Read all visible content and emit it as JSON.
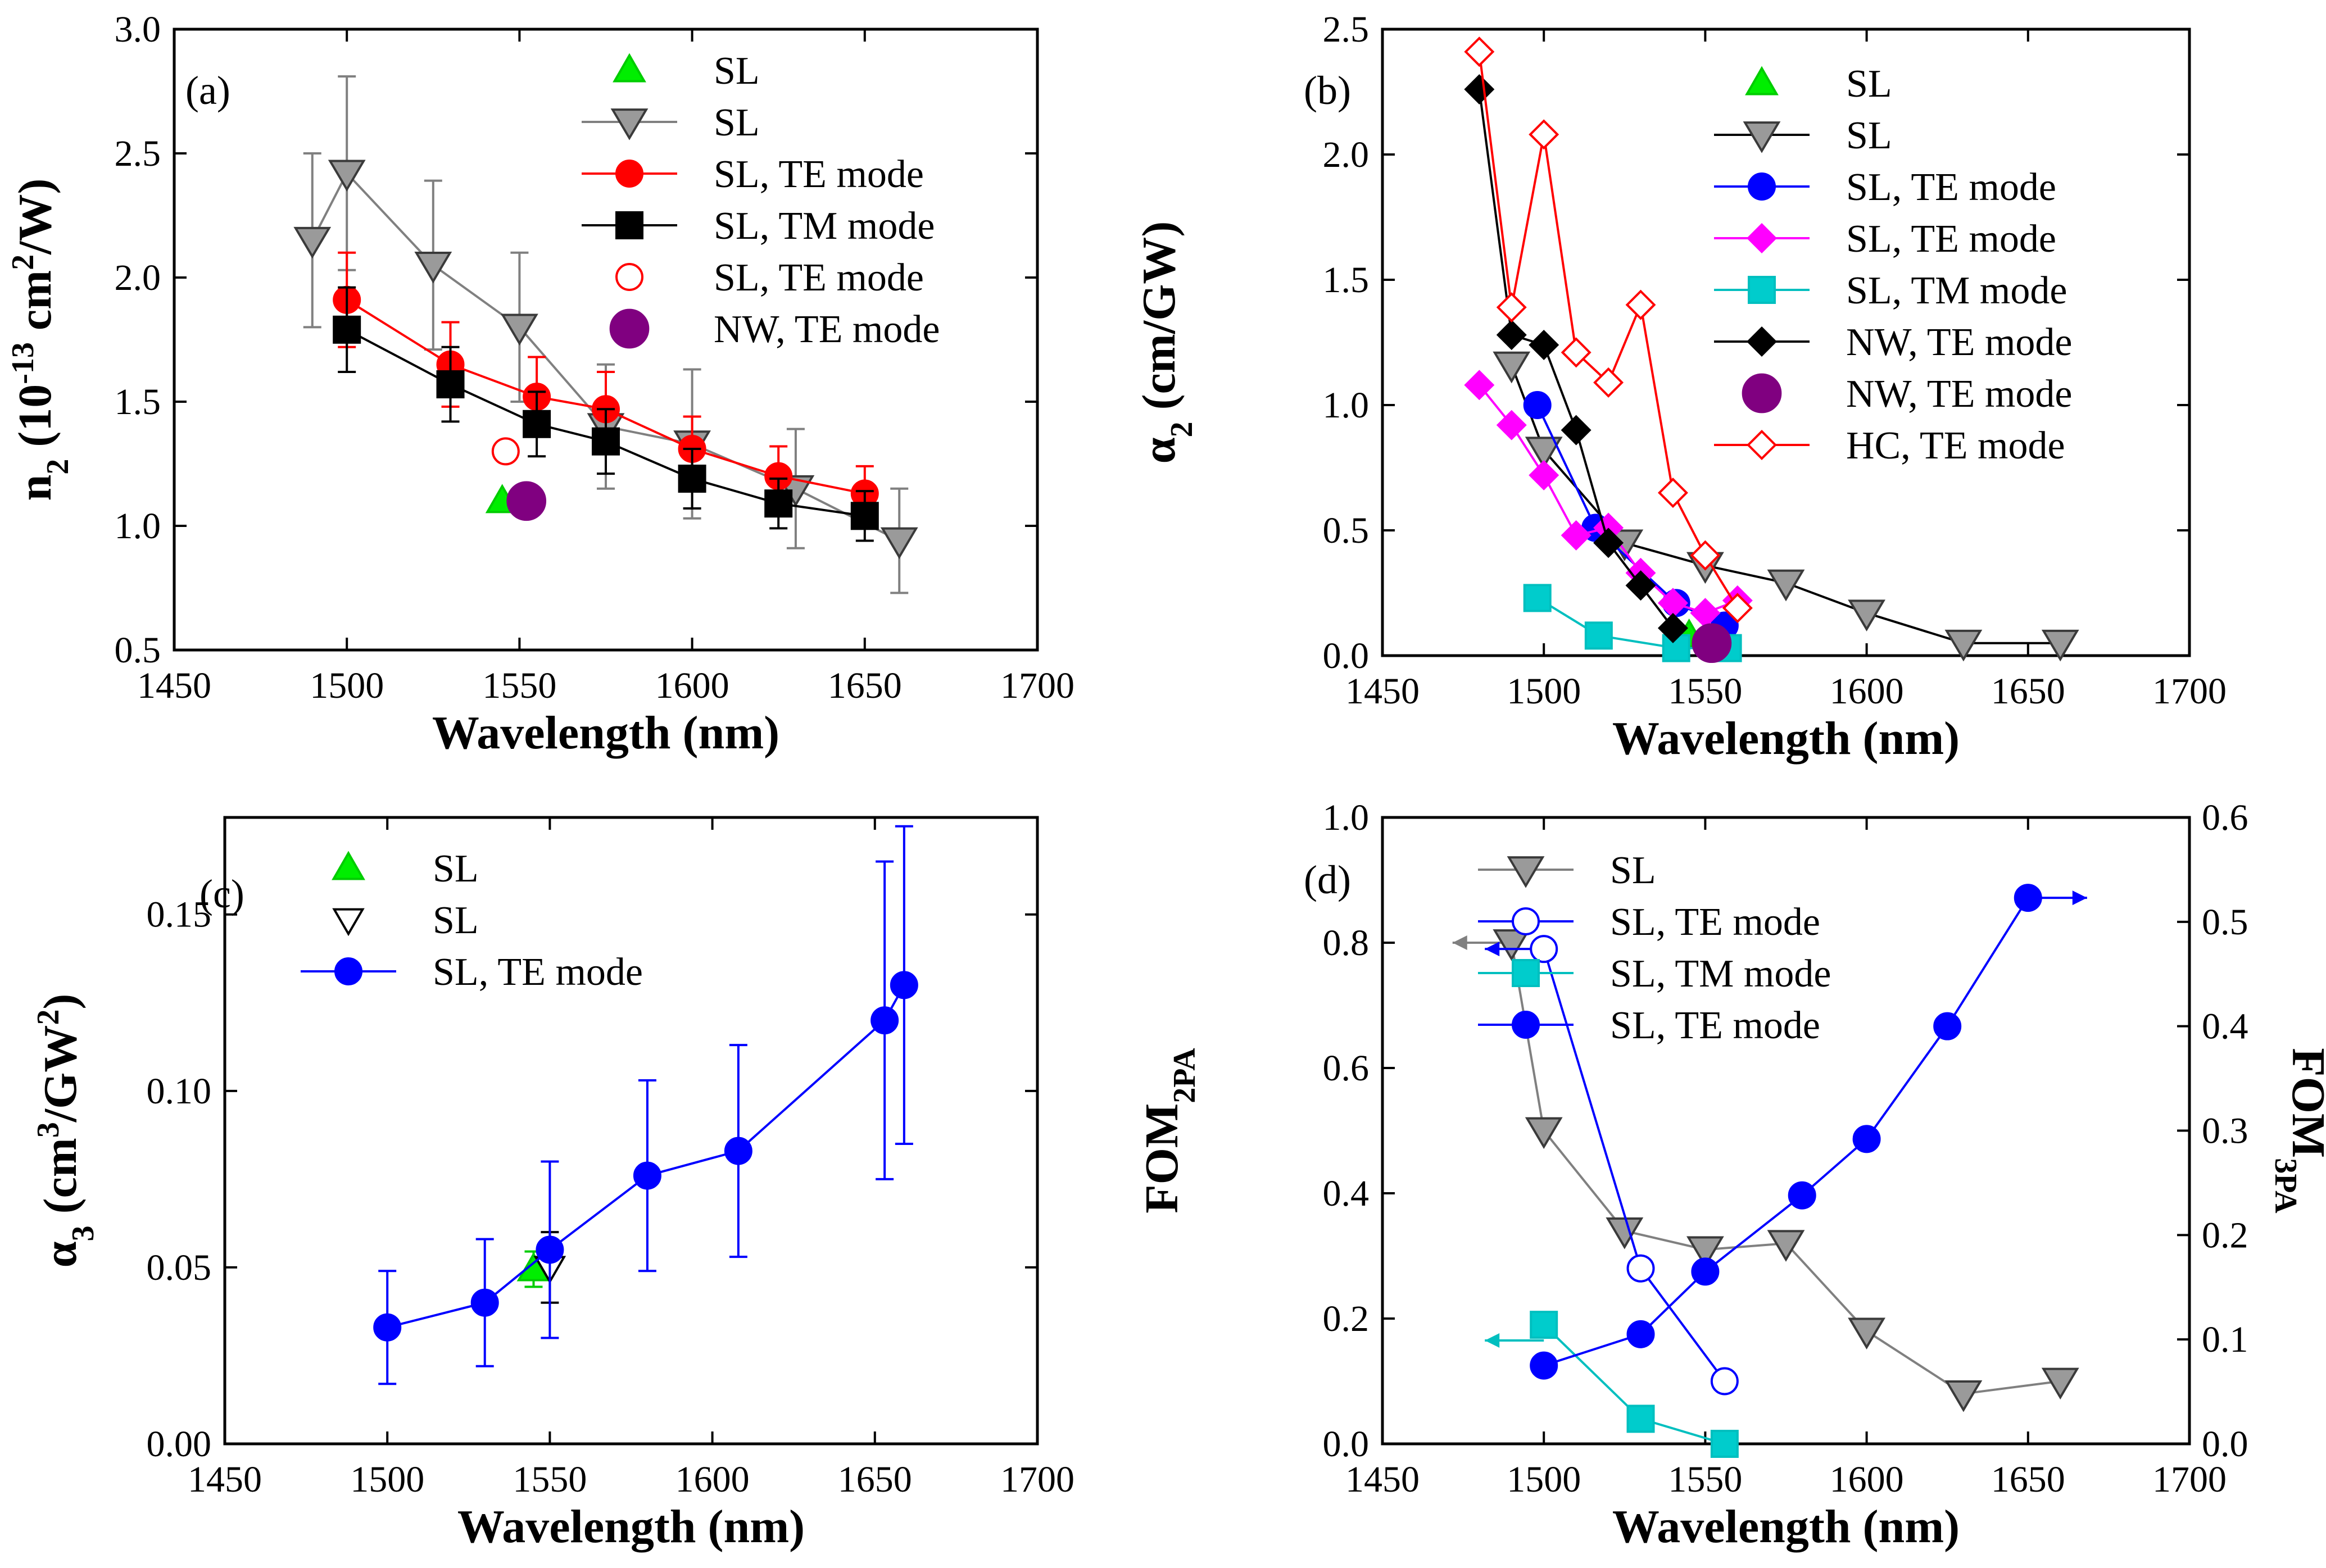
{
  "figure_title": "Nonlinear optical coefficients vs wavelength",
  "chart_data": [
    {
      "panel": "a",
      "type": "line",
      "panel_label": "(a)",
      "xlabel": "Wavelength (nm)",
      "ylabel_main": "n",
      "ylabel_sub": "2",
      "ylabel_rest": " (10",
      "ylabel_sup1": "-13",
      "ylabel_rest2": " cm",
      "ylabel_sup2": "2",
      "ylabel_rest3": "/W)",
      "xlim": [
        1450,
        1700
      ],
      "ylim": [
        0.5,
        3.0
      ],
      "xticks": [
        1450,
        1500,
        1550,
        1600,
        1650,
        1700
      ],
      "xtick_labels": [
        "1450",
        "1500",
        "1550",
        "1600",
        "1650",
        "1700"
      ],
      "yticks": [
        0.5,
        1.0,
        1.5,
        2.0,
        2.5,
        3.0
      ],
      "ytick_labels": [
        "0.5",
        "1.0",
        "1.5",
        "2.0",
        "2.5",
        "3.0"
      ],
      "series": [
        {
          "name": "SL",
          "marker": "triangle-up",
          "color": "#00cc00",
          "fill": "#00ee00",
          "line": false,
          "x": [
            1545
          ],
          "y": [
            1.1
          ]
        },
        {
          "name": "SL",
          "marker": "triangle-down",
          "color": "#808080",
          "fill": "#9a9a9a",
          "line": true,
          "x": [
            1490,
            1500,
            1525,
            1550,
            1575,
            1600,
            1630,
            1660
          ],
          "y": [
            2.15,
            2.42,
            2.05,
            1.8,
            1.4,
            1.33,
            1.15,
            0.94
          ],
          "err": [
            0.35,
            0.39,
            0.34,
            0.3,
            0.25,
            0.3,
            0.24,
            0.21
          ]
        },
        {
          "name": "SL, TE mode",
          "marker": "circle",
          "color": "#ff0000",
          "fill": "#ff0000",
          "line": true,
          "x": [
            1500,
            1530,
            1555,
            1575,
            1600,
            1625,
            1650
          ],
          "y": [
            1.91,
            1.65,
            1.52,
            1.47,
            1.31,
            1.2,
            1.13
          ],
          "err": [
            0.19,
            0.17,
            0.16,
            0.15,
            0.13,
            0.12,
            0.11
          ]
        },
        {
          "name": "SL, TM mode",
          "marker": "square",
          "color": "#000000",
          "fill": "#000000",
          "line": true,
          "x": [
            1500,
            1530,
            1555,
            1575,
            1600,
            1625,
            1650
          ],
          "y": [
            1.79,
            1.57,
            1.41,
            1.34,
            1.19,
            1.09,
            1.04
          ],
          "err": [
            0.17,
            0.15,
            0.13,
            0.13,
            0.12,
            0.1,
            0.1
          ]
        },
        {
          "name": "SL, TE mode",
          "marker": "circle-open",
          "color": "#ff0000",
          "fill": "none",
          "line": false,
          "x": [
            1546
          ],
          "y": [
            1.3
          ]
        },
        {
          "name": "NW, TE mode",
          "marker": "circle-big",
          "color": "#800080",
          "fill": "#800080",
          "line": false,
          "x": [
            1552
          ],
          "y": [
            1.1
          ]
        }
      ]
    },
    {
      "panel": "b",
      "type": "line",
      "panel_label": "(b)",
      "xlabel": "Wavelength (nm)",
      "ylabel_main": "α",
      "ylabel_sub": "2",
      "ylabel_rest": " (cm/GW)",
      "xlim": [
        1450,
        1700
      ],
      "ylim": [
        0,
        2.5
      ],
      "xticks": [
        1450,
        1500,
        1550,
        1600,
        1650,
        1700
      ],
      "xtick_labels": [
        "1450",
        "1500",
        "1550",
        "1600",
        "1650",
        "1700"
      ],
      "yticks": [
        0,
        0.5,
        1.0,
        1.5,
        2.0,
        2.5
      ],
      "ytick_labels": [
        "0.0",
        "0.5",
        "1.0",
        "1.5",
        "2.0",
        "2.5"
      ],
      "series": [
        {
          "name": "SL",
          "marker": "triangle-up",
          "color": "#00cc00",
          "fill": "#00ee00",
          "line": false,
          "x": [
            1545
          ],
          "y": [
            0.08
          ]
        },
        {
          "name": "SL",
          "marker": "triangle-down",
          "color": "#000000",
          "fill": "#9a9a9a",
          "line": true,
          "x": [
            1490,
            1500,
            1525,
            1550,
            1575,
            1600,
            1630,
            1660
          ],
          "y": [
            1.16,
            0.82,
            0.45,
            0.36,
            0.29,
            0.17,
            0.05,
            0.05
          ]
        },
        {
          "name": "SL, TE mode",
          "marker": "circle",
          "color": "#0000ff",
          "fill": "#0000ff",
          "line": true,
          "x": [
            1498,
            1516,
            1541,
            1556
          ],
          "y": [
            1.0,
            0.51,
            0.21,
            0.12
          ]
        },
        {
          "name": "SL, TE mode",
          "marker": "diamond",
          "color": "#ff00ff",
          "fill": "#ff00ff",
          "line": true,
          "x": [
            1480,
            1490,
            1500,
            1510,
            1520,
            1530,
            1540,
            1550,
            1560
          ],
          "y": [
            1.08,
            0.92,
            0.72,
            0.48,
            0.51,
            0.33,
            0.21,
            0.17,
            0.22
          ]
        },
        {
          "name": "SL, TM mode",
          "marker": "square",
          "color": "#00bfbf",
          "fill": "#00cccc",
          "line": true,
          "x": [
            1498,
            1517,
            1541,
            1557
          ],
          "y": [
            0.23,
            0.08,
            0.03,
            0.03
          ]
        },
        {
          "name": "NW, TE mode",
          "marker": "diamond",
          "color": "#000000",
          "fill": "#000000",
          "line": true,
          "x": [
            1480,
            1490,
            1500,
            1510,
            1520,
            1530,
            1540
          ],
          "y": [
            2.26,
            1.28,
            1.24,
            0.9,
            0.45,
            0.28,
            0.11
          ]
        },
        {
          "name": "NW, TE mode",
          "marker": "circle-big",
          "color": "#800080",
          "fill": "#800080",
          "line": false,
          "x": [
            1552
          ],
          "y": [
            0.05
          ]
        },
        {
          "name": "HC, TE mode",
          "marker": "diamond-open",
          "color": "#ff0000",
          "fill": "#ffffff",
          "line": true,
          "x": [
            1480,
            1490,
            1500,
            1510,
            1520,
            1530,
            1540,
            1550,
            1560
          ],
          "y": [
            2.41,
            1.39,
            2.08,
            1.21,
            1.09,
            1.4,
            0.65,
            0.4,
            0.19
          ]
        }
      ]
    },
    {
      "panel": "c",
      "type": "line",
      "panel_label": "(c)",
      "xlabel": "Wavelength (nm)",
      "ylabel_main": "α",
      "ylabel_sub": "3",
      "ylabel_rest": " (cm",
      "ylabel_sup1": "3",
      "ylabel_rest2": "/GW",
      "ylabel_sup2": "2",
      "ylabel_rest3": ")",
      "xlim": [
        1450,
        1700
      ],
      "ylim": [
        0,
        0.1775
      ],
      "xticks": [
        1450,
        1500,
        1550,
        1600,
        1650,
        1700
      ],
      "xtick_labels": [
        "1450",
        "1500",
        "1550",
        "1600",
        "1650",
        "1700"
      ],
      "yticks": [
        0,
        0.05,
        0.1,
        0.15
      ],
      "ytick_labels": [
        "0.00",
        "0.05",
        "0.10",
        "0.15"
      ],
      "series": [
        {
          "name": "SL",
          "marker": "triangle-up",
          "color": "#00cc00",
          "fill": "#00ee00",
          "line": false,
          "x": [
            1545
          ],
          "y": [
            0.0495
          ],
          "err": [
            0.005
          ]
        },
        {
          "name": "SL",
          "marker": "triangle-down-open",
          "color": "#000000",
          "fill": "#ffffff",
          "line": false,
          "x": [
            1550
          ],
          "y": [
            0.05
          ],
          "err": [
            0.01
          ]
        },
        {
          "name": "SL, TE mode",
          "marker": "circle",
          "color": "#0000ff",
          "fill": "#0000ff",
          "line": true,
          "x": [
            1500,
            1530,
            1550,
            1580,
            1608,
            1653,
            1659
          ],
          "y": [
            0.033,
            0.04,
            0.055,
            0.076,
            0.083,
            0.12,
            0.13
          ],
          "err": [
            0.016,
            0.018,
            0.025,
            0.027,
            0.03,
            0.045,
            0.045
          ]
        }
      ]
    },
    {
      "panel": "d",
      "type": "line",
      "panel_label": "(d)",
      "xlabel": "Wavelength (nm)",
      "ylabel_main": "FOM",
      "ylabel_sub": "2PA",
      "y2label_main": "FOM",
      "y2label_sub": "3PA",
      "xlim": [
        1450,
        1700
      ],
      "ylim": [
        0,
        1.0
      ],
      "y2lim": [
        0,
        0.6
      ],
      "xticks": [
        1450,
        1500,
        1550,
        1600,
        1650,
        1700
      ],
      "xtick_labels": [
        "1450",
        "1500",
        "1550",
        "1600",
        "1650",
        "1700"
      ],
      "yticks": [
        0,
        0.2,
        0.4,
        0.6,
        0.8,
        1.0
      ],
      "ytick_labels": [
        "0.0",
        "0.2",
        "0.4",
        "0.6",
        "0.8",
        "1.0"
      ],
      "y2ticks": [
        0,
        0.1,
        0.2,
        0.3,
        0.4,
        0.5,
        0.6
      ],
      "y2tick_labels": [
        "0.0",
        "0.1",
        "0.2",
        "0.3",
        "0.4",
        "0.5",
        "0.6"
      ],
      "series": [
        {
          "name": "SL",
          "marker": "triangle-down",
          "color": "#808080",
          "fill": "#9a9a9a",
          "line": true,
          "axis": "left",
          "x": [
            1490,
            1500,
            1525,
            1550,
            1575,
            1600,
            1630,
            1660
          ],
          "y": [
            0.8,
            0.5,
            0.34,
            0.31,
            0.32,
            0.18,
            0.08,
            0.1
          ],
          "arrow": {
            "x": 1490,
            "y": 0.8,
            "dir": "left",
            "color": "#808080"
          }
        },
        {
          "name": "SL, TE mode",
          "marker": "circle-open",
          "color": "#0000ff",
          "fill": "#ffffff",
          "line": true,
          "axis": "left",
          "x": [
            1500,
            1530,
            1556
          ],
          "y": [
            0.79,
            0.28,
            0.1
          ],
          "arrow": {
            "x": 1500,
            "y": 0.79,
            "dir": "left",
            "color": "#0000ff"
          }
        },
        {
          "name": "SL, TM mode",
          "marker": "square",
          "color": "#00bfbf",
          "fill": "#00cccc",
          "line": true,
          "axis": "left",
          "x": [
            1500,
            1530,
            1556
          ],
          "y": [
            0.19,
            0.04,
            0.0
          ],
          "arrow": {
            "x": 1500,
            "y": 0.165,
            "dir": "left",
            "color": "#00bfbf"
          }
        },
        {
          "name": "SL, TE mode",
          "marker": "circle",
          "color": "#0000ff",
          "fill": "#0000ff",
          "line": true,
          "axis": "right",
          "x": [
            1500,
            1530,
            1550,
            1580,
            1600,
            1625,
            1650
          ],
          "y": [
            0.075,
            0.105,
            0.165,
            0.238,
            0.292,
            0.4,
            0.523
          ],
          "arrow": {
            "x": 1650,
            "y": 0.523,
            "dir": "right",
            "color": "#0000ff"
          }
        }
      ]
    }
  ]
}
